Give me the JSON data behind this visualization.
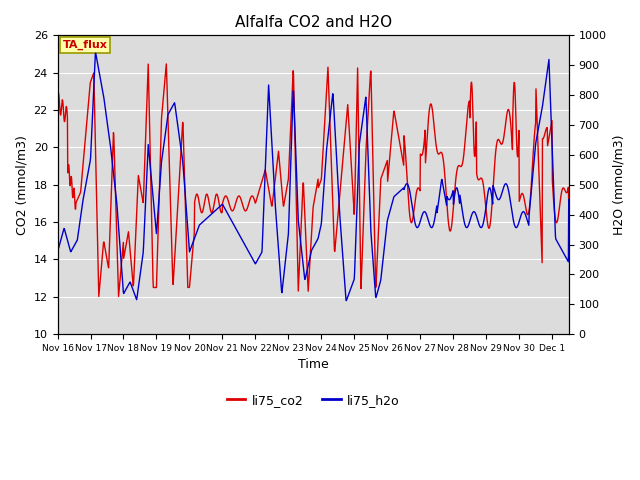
{
  "title": "Alfalfa CO2 and H2O",
  "xlabel": "Time",
  "ylabel_left": "CO2 (mmol/m3)",
  "ylabel_right": "H2O (mmol/m3)",
  "ylim_left": [
    10,
    26
  ],
  "ylim_right": [
    0,
    1000
  ],
  "yticks_left": [
    10,
    12,
    14,
    16,
    18,
    20,
    22,
    24,
    26
  ],
  "yticks_right": [
    0,
    100,
    200,
    300,
    400,
    500,
    600,
    700,
    800,
    900,
    1000
  ],
  "bg_color": "#dcdcdc",
  "legend_label_co2": "li75_co2",
  "legend_label_h2o": "li75_h2o",
  "color_co2": "#dd0000",
  "color_h2o": "#0000cc",
  "tag_text": "TA_flux",
  "tag_bg": "#ffffaa",
  "tag_border": "#999900",
  "linewidth": 1.0,
  "xtick_labels": [
    "Nov 16",
    "Nov 17",
    "Nov 18",
    "Nov 19",
    "Nov 20",
    "Nov 21",
    "Nov 22",
    "Nov 23",
    "Nov 24",
    "Nov 25",
    "Nov 26",
    "Nov 27",
    "Nov 28",
    "Nov 29",
    "Nov 30",
    "Dec 1"
  ]
}
